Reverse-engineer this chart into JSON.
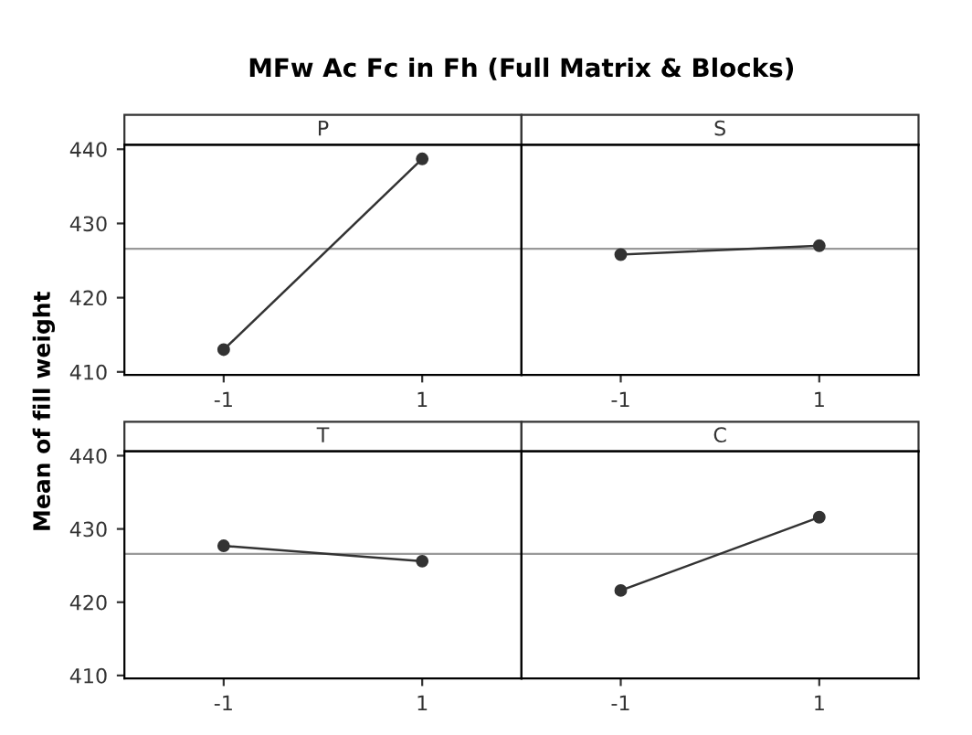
{
  "chart_data": [
    {
      "type": "line",
      "title": "MFw Ac Fc in Fh (Full Matrix & Blocks)",
      "subtitle": "P",
      "ylabel": "Mean of fill weight",
      "categories": [
        "-1",
        "1"
      ],
      "series": [
        {
          "color": "#333333",
          "values": [
            413.0,
            438.7
          ]
        }
      ],
      "ylim": [
        409.6,
        440.6
      ],
      "yticks": [
        410,
        420,
        430,
        440
      ],
      "ref_lines": [
        {
          "axis": "y",
          "value": 426.6,
          "color": "#999999"
        }
      ],
      "marker": "circle",
      "line_style": "solid",
      "grid": false,
      "legend": false
    },
    {
      "type": "line",
      "subtitle": "S",
      "categories": [
        "-1",
        "1"
      ],
      "series": [
        {
          "color": "#333333",
          "values": [
            425.8,
            427.0
          ]
        }
      ],
      "ylim": [
        409.6,
        440.6
      ],
      "yticks": [
        410,
        420,
        430,
        440
      ],
      "ref_lines": [
        {
          "axis": "y",
          "value": 426.6,
          "color": "#999999"
        }
      ],
      "marker": "circle",
      "line_style": "solid",
      "grid": false,
      "legend": false,
      "tick_labels": "x"
    },
    {
      "type": "line",
      "subtitle": "T",
      "categories": [
        "-1",
        "1"
      ],
      "series": [
        {
          "color": "#333333",
          "values": [
            427.7,
            425.6
          ]
        }
      ],
      "ylim": [
        409.6,
        440.6
      ],
      "yticks": [
        410,
        420,
        430,
        440
      ],
      "ref_lines": [
        {
          "axis": "y",
          "value": 426.6,
          "color": "#999999"
        }
      ],
      "marker": "circle",
      "line_style": "solid",
      "grid": false,
      "legend": false
    },
    {
      "type": "line",
      "subtitle": "C",
      "categories": [
        "-1",
        "1"
      ],
      "series": [
        {
          "color": "#333333",
          "values": [
            421.6,
            431.6
          ]
        }
      ],
      "ylim": [
        409.6,
        440.6
      ],
      "yticks": [
        410,
        420,
        430,
        440
      ],
      "ref_lines": [
        {
          "axis": "y",
          "value": 426.6,
          "color": "#999999"
        }
      ],
      "marker": "circle",
      "line_style": "solid",
      "grid": false,
      "legend": false,
      "tick_labels": "x"
    }
  ]
}
